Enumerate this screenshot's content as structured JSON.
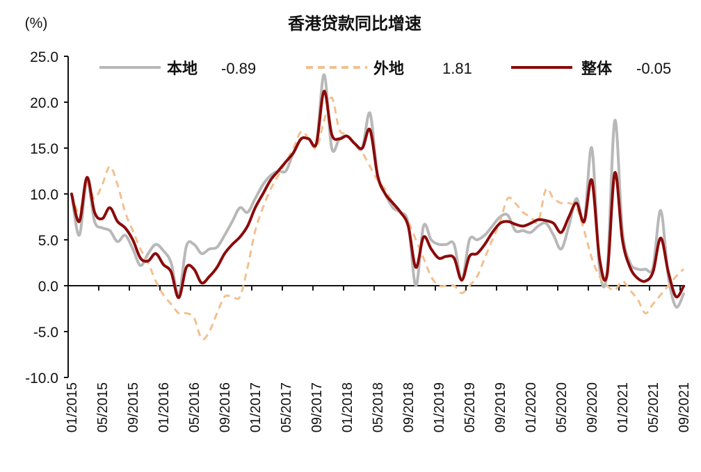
{
  "chart_data": {
    "type": "line",
    "title": "香港贷款同比增速",
    "ylabel": "(%)",
    "ylim": [
      -10,
      25
    ],
    "yticks": [
      "25.0",
      "20.0",
      "15.0",
      "10.0",
      "5.0",
      "0.0",
      "-5.0",
      "-10.0"
    ],
    "ytick_values": [
      25,
      20,
      15,
      10,
      5,
      0,
      -5,
      -10
    ],
    "x_start": "01/2015",
    "x_end": "09/2021",
    "xtick_labels": [
      "01/2015",
      "05/2015",
      "09/2015",
      "01/2016",
      "05/2016",
      "09/2016",
      "01/2017",
      "05/2017",
      "09/2017",
      "01/2018",
      "05/2018",
      "09/2018",
      "01/2019",
      "05/2019",
      "09/2019",
      "01/2020",
      "05/2020",
      "09/2020",
      "01/2021",
      "05/2021",
      "09/2021"
    ],
    "grid": false,
    "legend_position": "top",
    "series": [
      {
        "name": "本地",
        "latest": "-0.89",
        "color": "#b8b8b8",
        "dash": false,
        "values": [
          10,
          5.5,
          11.5,
          7,
          6.3,
          6,
          4.8,
          5.5,
          4,
          2.2,
          3.5,
          4.5,
          3.8,
          2.5,
          -1,
          4.3,
          4.5,
          3.5,
          4,
          4.2,
          5.5,
          7,
          8.5,
          8,
          9.5,
          11,
          12,
          12.5,
          12.5,
          14.5,
          16,
          16,
          15.5,
          23,
          15,
          16,
          16.3,
          15.5,
          15,
          18.8,
          12,
          10,
          8.5,
          8,
          6.8,
          0,
          6.5,
          5,
          4.5,
          4.5,
          4.5,
          0.6,
          5,
          5,
          5.5,
          6.5,
          7.5,
          7.7,
          6,
          6,
          5.8,
          6.5,
          6.8,
          5.5,
          4,
          6.5,
          9.5,
          7,
          15,
          2,
          1.5,
          18,
          6,
          2.5,
          1.8,
          1.8,
          2,
          8.2,
          1,
          -2.3,
          -0.89
        ]
      },
      {
        "name": "外地",
        "latest": "1.81",
        "color": "#f2c08e",
        "dash": true,
        "values": [
          10,
          8,
          11,
          9.5,
          11,
          13,
          11,
          8,
          6,
          4,
          2.5,
          0.5,
          -1,
          -2,
          -3,
          -3,
          -3.5,
          -5.8,
          -5,
          -3,
          -1.2,
          -1.2,
          -1.2,
          2,
          6,
          8.5,
          10.5,
          12,
          13.5,
          15,
          16.8,
          16,
          15,
          18,
          20.5,
          17,
          16.5,
          15.5,
          14.5,
          13,
          11.5,
          10.5,
          9,
          8,
          7,
          5,
          3,
          1,
          0,
          0,
          0,
          -0.8,
          0,
          1,
          3,
          5,
          7,
          9.5,
          9,
          8,
          7.5,
          7,
          10.5,
          9.5,
          9,
          9,
          8.5,
          6,
          3,
          1,
          0,
          -0.5,
          0.5,
          -0.5,
          -1.5,
          -3,
          -2,
          -1,
          0,
          1,
          1.81
        ]
      },
      {
        "name": "整体",
        "latest": "-0.05",
        "color": "#8b0a0a",
        "dash": false,
        "values": [
          10,
          7,
          11.8,
          8,
          7.3,
          8.5,
          7,
          6.3,
          5,
          3,
          2.7,
          3.5,
          2.3,
          1.5,
          -1.3,
          2,
          1.8,
          0.3,
          1,
          2,
          3.5,
          4.5,
          5.3,
          6.5,
          8.5,
          10,
          11.5,
          12.5,
          13.5,
          14.5,
          16,
          16,
          15.5,
          21.2,
          16.5,
          16,
          16.3,
          15.5,
          15,
          17,
          12,
          10,
          9,
          8,
          6.5,
          2,
          5.3,
          4,
          3,
          3.2,
          3,
          0.6,
          3.2,
          3.5,
          4.5,
          5.8,
          6.8,
          7,
          6.7,
          6.5,
          6.8,
          7.2,
          7.1,
          6.8,
          5.8,
          7.5,
          9,
          7,
          11.5,
          3,
          1.2,
          12.3,
          5,
          2,
          0.8,
          0.5,
          1.5,
          5.2,
          1.5,
          -1.2,
          -0.05
        ]
      }
    ]
  }
}
